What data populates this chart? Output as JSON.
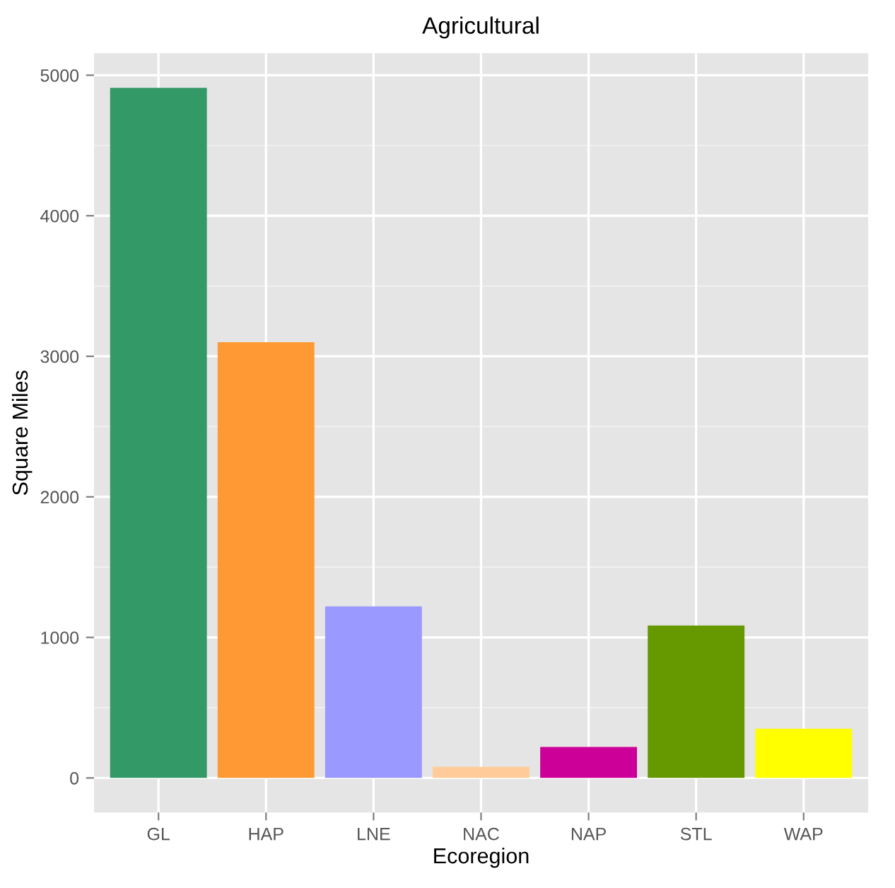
{
  "chart_data": {
    "type": "bar",
    "title": "Agricultural",
    "xlabel": "Ecoregion",
    "ylabel": "Square Miles",
    "categories": [
      "GL",
      "HAP",
      "LNE",
      "NAC",
      "NAP",
      "STL",
      "WAP"
    ],
    "values": [
      4910,
      3100,
      1220,
      80,
      220,
      1085,
      350
    ],
    "colors": [
      "#339966",
      "#ff9933",
      "#9999ff",
      "#ffcc99",
      "#cc0099",
      "#669900",
      "#ffff00"
    ],
    "ylim": [
      -246,
      5156
    ],
    "yticks": [
      0,
      1000,
      2000,
      3000,
      4000,
      5000
    ],
    "grid": true
  }
}
